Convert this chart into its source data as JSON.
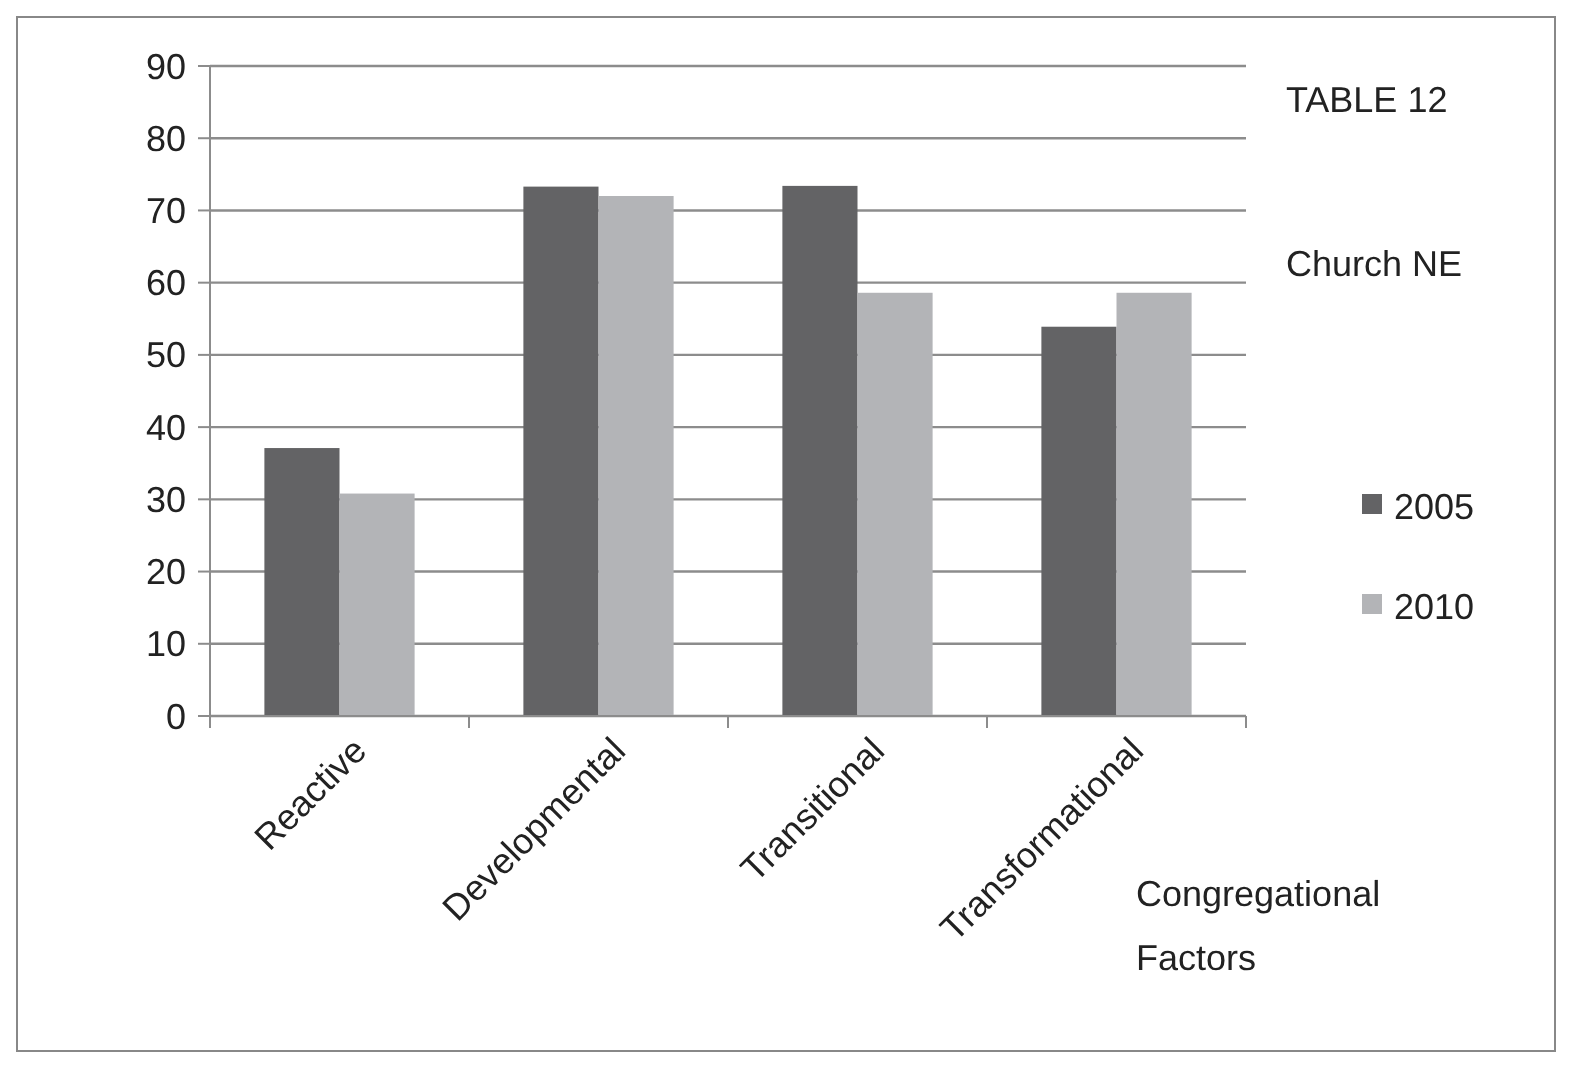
{
  "chart_data": {
    "type": "bar",
    "title": "TABLE 12",
    "subtitle": "Church NE",
    "xlabel": "Congregational Factors",
    "categories": [
      "Reactive",
      "Developmental",
      "Transitional",
      "Transformational"
    ],
    "series": [
      {
        "name": "2005",
        "color": "#636365",
        "values": [
          37.1,
          73.3,
          73.4,
          53.9
        ]
      },
      {
        "name": "2010",
        "color": "#b3b4b7",
        "values": [
          30.8,
          72.0,
          58.6,
          58.6
        ]
      }
    ],
    "ylim": [
      0,
      90
    ],
    "yticks": [
      0,
      10,
      20,
      30,
      40,
      50,
      60,
      70,
      80,
      90
    ],
    "grid": "y",
    "legend": "right"
  }
}
